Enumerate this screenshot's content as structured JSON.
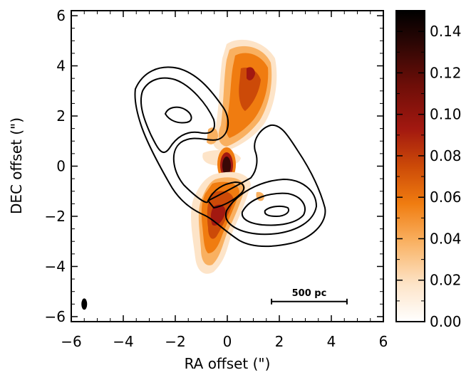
{
  "chart_data": {
    "type": "heatmap",
    "title": "",
    "xlabel": "RA offset (\")",
    "ylabel": "DEC offset (\")",
    "xlim": [
      -6,
      6
    ],
    "ylim": [
      -6.2,
      6.2
    ],
    "xticks": [
      -6,
      -4,
      -2,
      0,
      2,
      4,
      6
    ],
    "yticks": [
      -6,
      -4,
      -2,
      0,
      2,
      4,
      6
    ],
    "x_tick_labels": [
      "−6",
      "−4",
      "−2",
      "0",
      "2",
      "4",
      "6"
    ],
    "y_tick_labels": [
      "−6",
      "−4",
      "−2",
      "0",
      "2",
      "4",
      "6"
    ],
    "colorbar": {
      "range": [
        0.0,
        0.15
      ],
      "ticks": [
        0.0,
        0.02,
        0.04,
        0.06,
        0.08,
        0.1,
        0.12,
        0.14
      ],
      "tick_labels": [
        "0.00",
        "0.02",
        "0.04",
        "0.06",
        "0.08",
        "0.10",
        "0.12",
        "0.14"
      ],
      "colormap": [
        "#ffffff",
        "#fde4c8",
        "#f9b060",
        "#f07c10",
        "#cc4a08",
        "#a21810",
        "#6e0e08",
        "#2a0604",
        "#000000"
      ]
    },
    "emission_regions": [
      {
        "name": "northern-extension",
        "center": [
          0.7,
          3.3
        ],
        "peak": 0.09
      },
      {
        "name": "nucleus",
        "center": [
          0.0,
          0.0
        ],
        "peak": 0.15
      },
      {
        "name": "southern-extension",
        "center": [
          -0.3,
          -1.8
        ],
        "peak": 0.085
      }
    ],
    "contour_lobes": [
      {
        "name": "north-east-lobe",
        "center": [
          -2.0,
          2.1
        ]
      },
      {
        "name": "south-west-lobe",
        "center": [
          2.0,
          -1.7
        ]
      }
    ],
    "scale_bar": {
      "label": "500 pc",
      "x_range": [
        1.7,
        4.6
      ],
      "y": -5.4
    },
    "beam": {
      "center": [
        -5.5,
        -5.5
      ],
      "major": 0.45,
      "minor": 0.22
    }
  }
}
